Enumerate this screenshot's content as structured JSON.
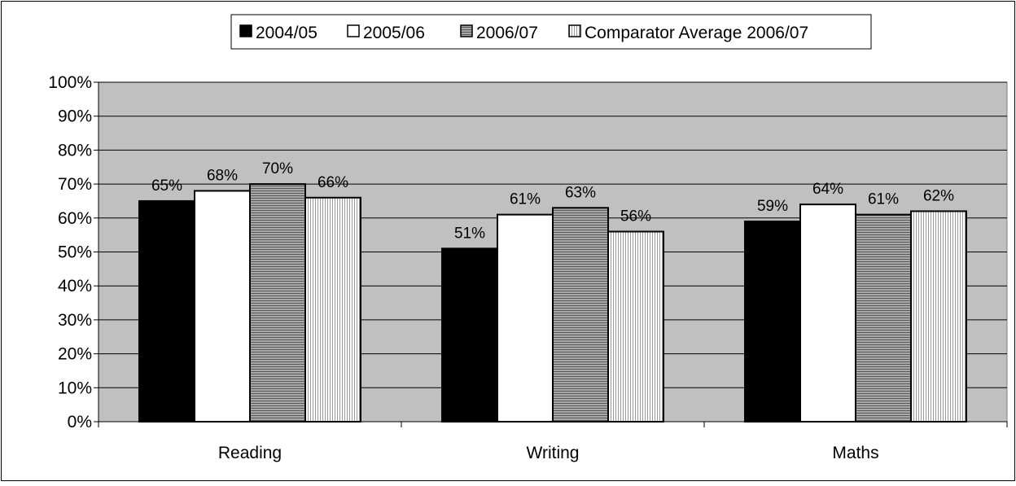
{
  "chart_data": {
    "type": "bar",
    "categories": [
      "Reading",
      "Writing",
      "Maths"
    ],
    "series": [
      {
        "name": "2004/05",
        "values": [
          65,
          51,
          59
        ],
        "color": "#000000",
        "pattern": "solid"
      },
      {
        "name": "2005/06",
        "values": [
          68,
          61,
          64
        ],
        "color": "#ffffff",
        "pattern": "solid"
      },
      {
        "name": "2006/07",
        "values": [
          70,
          63,
          61
        ],
        "color": "#8c8c8c",
        "pattern": "horizontal-lines"
      },
      {
        "name": "Comparator Average 2006/07",
        "values": [
          66,
          56,
          62
        ],
        "color": "#d4d4d4",
        "pattern": "vertical-lines"
      }
    ],
    "data_labels": [
      [
        "65%",
        "51%",
        "59%"
      ],
      [
        "68%",
        "61%",
        "64%"
      ],
      [
        "70%",
        "63%",
        "61%"
      ],
      [
        "66%",
        "56%",
        "62%"
      ]
    ],
    "y_ticks": [
      "0%",
      "10%",
      "20%",
      "30%",
      "40%",
      "50%",
      "60%",
      "70%",
      "80%",
      "90%",
      "100%"
    ],
    "ylim": [
      0,
      100
    ],
    "grid": true,
    "legend_position": "top",
    "plot_background": "#c0c0c0",
    "title": "",
    "xlabel": "",
    "ylabel": ""
  }
}
